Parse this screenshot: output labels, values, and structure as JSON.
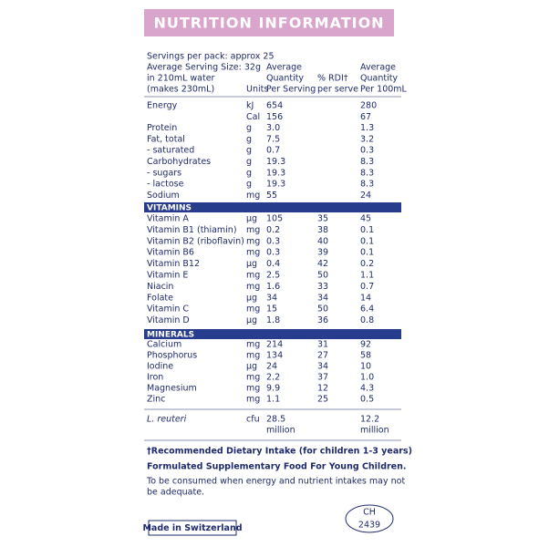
{
  "header": {
    "title": "NUTRITION INFORMATION"
  },
  "serving_info": [
    "Servings per pack: approx 25",
    "Average Serving Size: 32g",
    "in 210mL water",
    "(makes 230mL)"
  ],
  "columns": {
    "units": "Units",
    "per_serving": [
      "Average",
      "Quantity",
      "Per Serving"
    ],
    "rdi": [
      "% RDI†",
      "per serve"
    ],
    "per_100ml": [
      "Average",
      "Quantity",
      "Per 100mL"
    ]
  },
  "nutrients": {
    "rows": [
      [
        "Energy",
        "kJ",
        "654",
        null,
        "280"
      ],
      [
        null,
        "Cal",
        "156",
        null,
        "67"
      ],
      [
        "Protein",
        "g",
        "3.0",
        null,
        "1.3"
      ],
      [
        "Fat, total",
        "g",
        "7.5",
        null,
        "3.2"
      ],
      [
        "- saturated",
        "g",
        "0.7",
        null,
        "0.3"
      ],
      [
        "Carbohydrates",
        "g",
        "19.3",
        null,
        "8.3"
      ],
      [
        "- sugars",
        "g",
        "19.3",
        null,
        "8.3"
      ],
      [
        "- lactose",
        "g",
        "19.3",
        null,
        "8.3"
      ],
      [
        "Sodium",
        "mg",
        "55",
        null,
        "24"
      ]
    ]
  },
  "vitamins": {
    "title": "VITAMINS",
    "rows": [
      [
        "Vitamin A",
        "µg",
        "105",
        "35",
        "45"
      ],
      [
        "Vitamin B1 (thiamin)",
        "mg",
        "0.2",
        "38",
        "0.1"
      ],
      [
        "Vitamin B2 (riboflavin)",
        "mg",
        "0.3",
        "40",
        "0.1"
      ],
      [
        "Vitamin B6",
        "mg",
        "0.3",
        "39",
        "0.1"
      ],
      [
        "Vitamin B12",
        "µg",
        "0.4",
        "42",
        "0.2"
      ],
      [
        "Vitamin E",
        "mg",
        "2.5",
        "50",
        "1.1"
      ],
      [
        "Niacin",
        "mg",
        "1.6",
        "33",
        "0.7"
      ],
      [
        "Folate",
        "µg",
        "34",
        "34",
        "14"
      ],
      [
        "Vitamin C",
        "mg",
        "15",
        "50",
        "6.4"
      ],
      [
        "Vitamin D",
        "µg",
        "1.8",
        "36",
        "0.8"
      ]
    ]
  },
  "minerals": {
    "title": "MINERALS",
    "rows": [
      [
        "Calcium",
        "mg",
        "214",
        "31",
        "92"
      ],
      [
        "Phosphorus",
        "mg",
        "134",
        "27",
        "58"
      ],
      [
        "Iodine",
        "µg",
        "24",
        "34",
        "10"
      ],
      [
        "Iron",
        "mg",
        "2.2",
        "37",
        "1.0"
      ],
      [
        "Magnesium",
        "mg",
        "9.9",
        "12",
        "4.3"
      ],
      [
        "Zinc",
        "mg",
        "1.1",
        "25",
        "0.5"
      ]
    ]
  },
  "probiotic": {
    "rows": [
      [
        "L. reuteri",
        "cfu",
        "28.5",
        null,
        "12.2"
      ]
    ],
    "multiplier": "million"
  },
  "footnotes": [
    "†Recommended Dietary Intake (for children 1-3 years)",
    "Formulated Supplementary Food For Young Children.",
    "To be consumed when energy and nutrient intakes may not",
    "be adequate."
  ],
  "origin": "Made in Switzerland",
  "code": [
    "CH",
    "2439"
  ]
}
